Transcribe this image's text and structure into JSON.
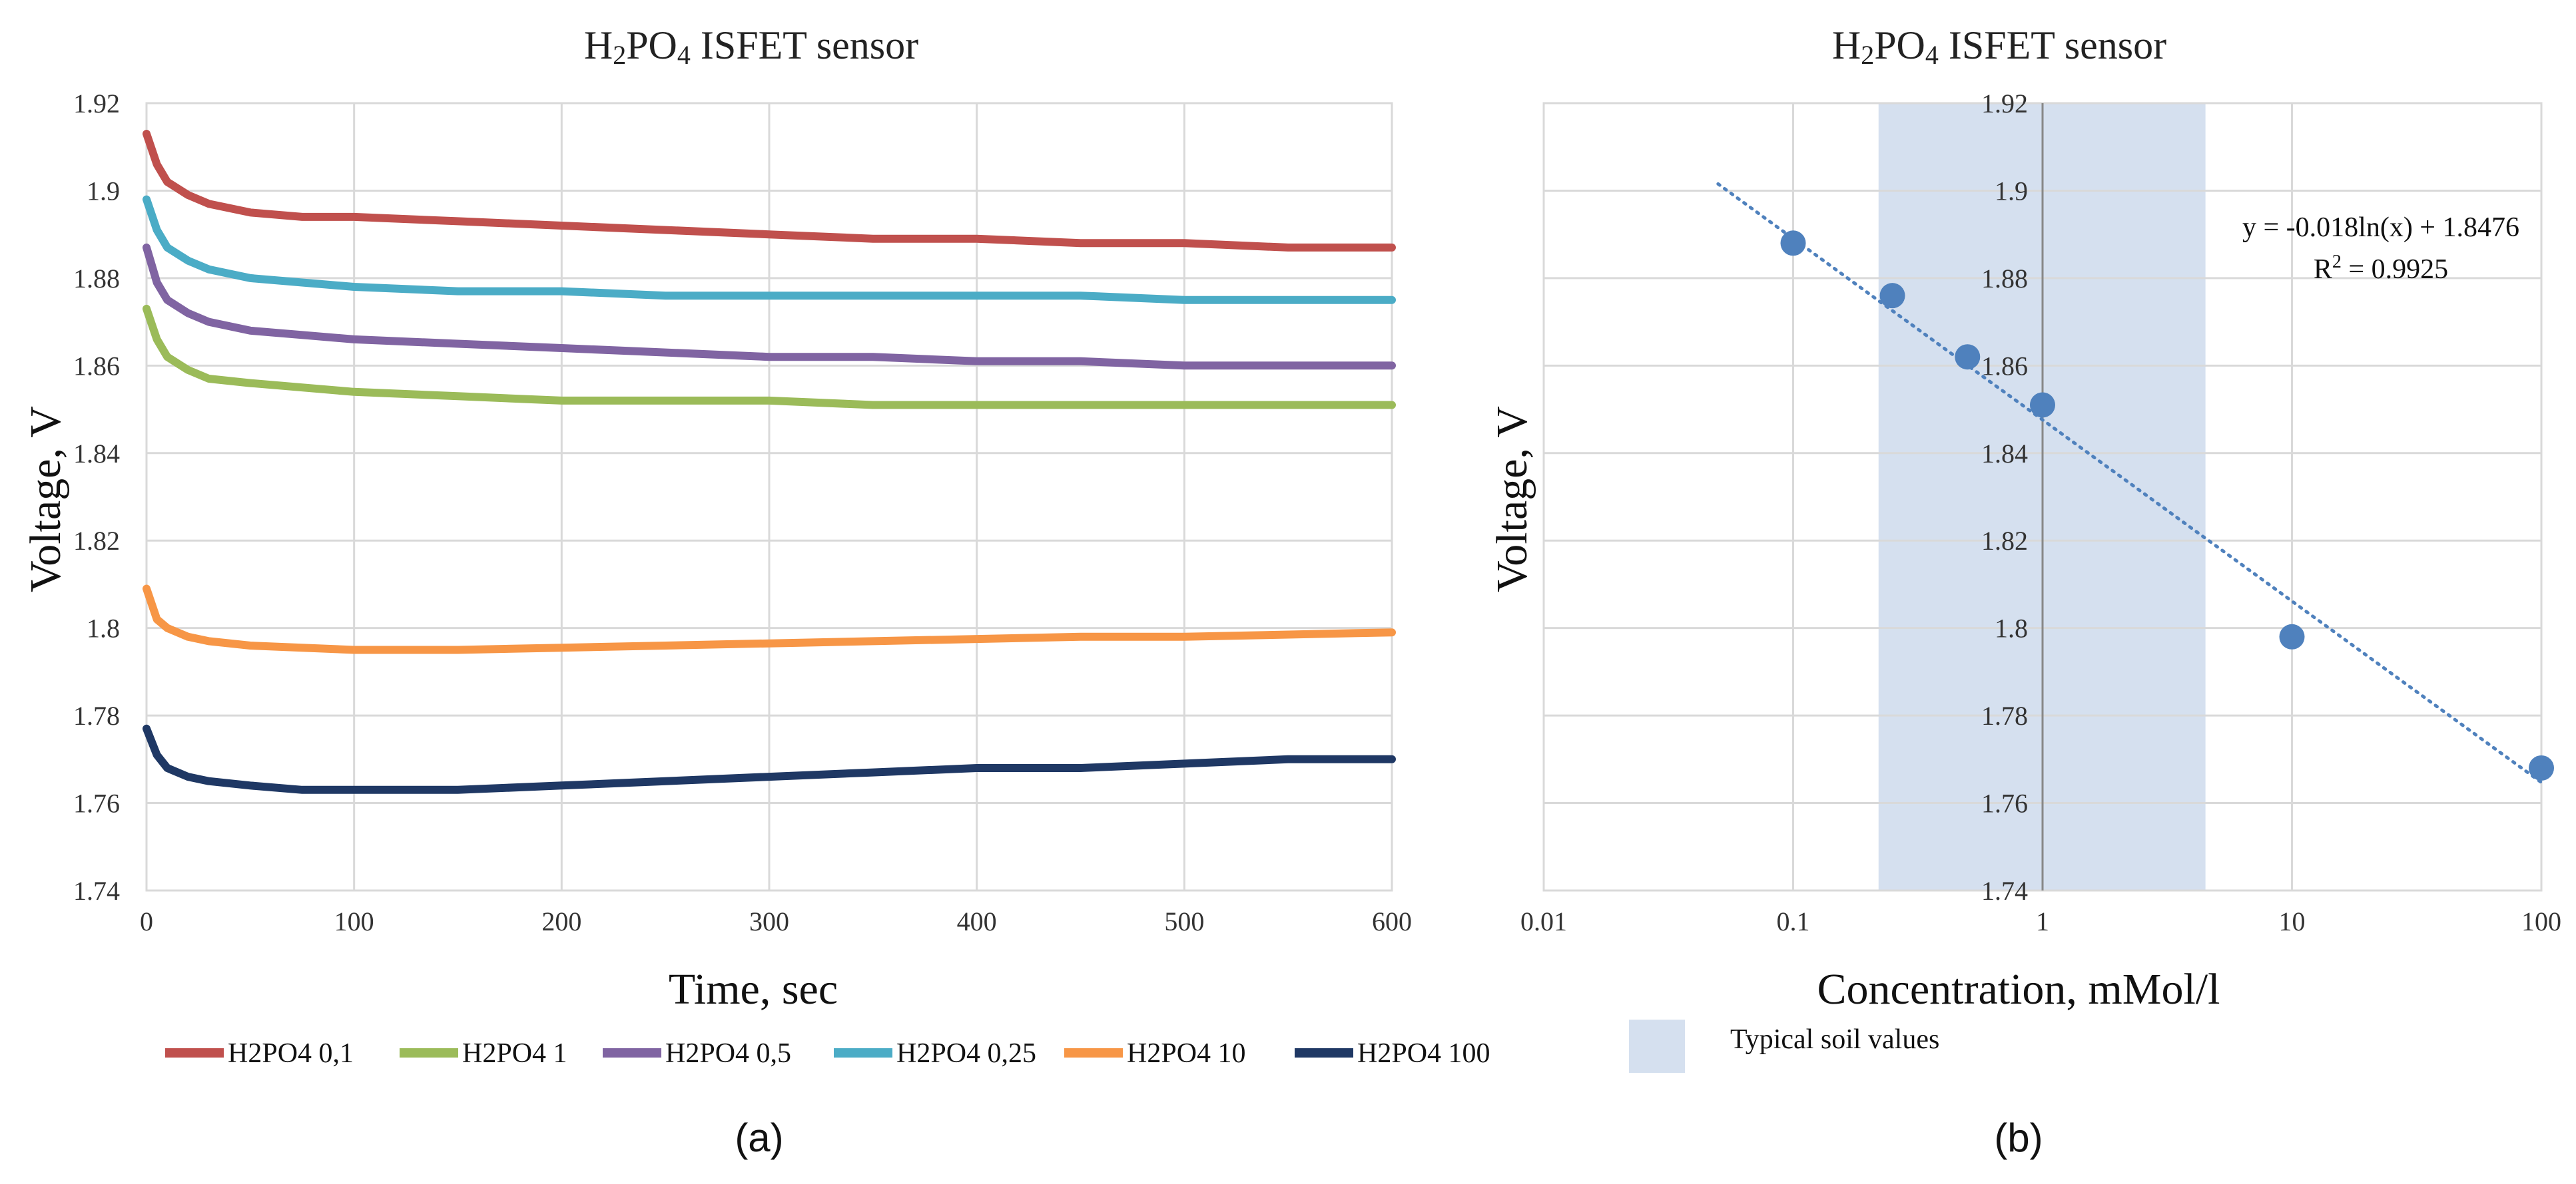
{
  "chart_data": [
    {
      "type": "line",
      "title_main": "H",
      "title_sub2": "2",
      "title_mid": "PO",
      "title_sub4": "4",
      "title_rest": " ISFET sensor",
      "xlabel": "Time, sec",
      "ylabel": "Voltage, V",
      "xlim": [
        0,
        600
      ],
      "ylim": [
        1.74,
        1.92
      ],
      "x_ticks": [
        "0",
        "100",
        "200",
        "300",
        "400",
        "500",
        "600"
      ],
      "y_ticks": [
        "1.74",
        "1.76",
        "1.78",
        "1.8",
        "1.82",
        "1.84",
        "1.86",
        "1.88",
        "1.9",
        "1.92"
      ],
      "grid": true,
      "series": [
        {
          "name": "H2PO4 0,1",
          "color": "#c0504d",
          "x": [
            0,
            5,
            10,
            20,
            30,
            50,
            75,
            100,
            150,
            200,
            250,
            300,
            350,
            400,
            450,
            500,
            550,
            600
          ],
          "values": [
            1.913,
            1.906,
            1.902,
            1.899,
            1.897,
            1.895,
            1.894,
            1.894,
            1.893,
            1.892,
            1.891,
            1.89,
            1.889,
            1.889,
            1.888,
            1.888,
            1.887,
            1.887
          ]
        },
        {
          "name": "H2PO4 1",
          "color": "#9bbb59",
          "x": [
            0,
            5,
            10,
            20,
            30,
            50,
            75,
            100,
            150,
            200,
            250,
            300,
            350,
            400,
            450,
            500,
            550,
            600
          ],
          "values": [
            1.873,
            1.866,
            1.862,
            1.859,
            1.857,
            1.856,
            1.855,
            1.854,
            1.853,
            1.852,
            1.852,
            1.852,
            1.851,
            1.851,
            1.851,
            1.851,
            1.851,
            1.851
          ]
        },
        {
          "name": "H2PO4 0,5",
          "color": "#8064a2",
          "x": [
            0,
            5,
            10,
            20,
            30,
            50,
            75,
            100,
            150,
            200,
            250,
            300,
            350,
            400,
            450,
            500,
            550,
            600
          ],
          "values": [
            1.887,
            1.879,
            1.875,
            1.872,
            1.87,
            1.868,
            1.867,
            1.866,
            1.865,
            1.864,
            1.863,
            1.862,
            1.862,
            1.861,
            1.861,
            1.86,
            1.86,
            1.86
          ]
        },
        {
          "name": "H2PO4 0,25",
          "color": "#4bacc6",
          "x": [
            0,
            5,
            10,
            20,
            30,
            50,
            75,
            100,
            150,
            200,
            250,
            300,
            350,
            400,
            450,
            500,
            550,
            600
          ],
          "values": [
            1.898,
            1.891,
            1.887,
            1.884,
            1.882,
            1.88,
            1.879,
            1.878,
            1.877,
            1.877,
            1.876,
            1.876,
            1.876,
            1.876,
            1.876,
            1.875,
            1.875,
            1.875
          ]
        },
        {
          "name": "H2PO4 10",
          "color": "#f79646",
          "x": [
            0,
            5,
            10,
            20,
            30,
            50,
            75,
            100,
            150,
            200,
            250,
            300,
            350,
            400,
            450,
            500,
            550,
            600
          ],
          "values": [
            1.809,
            1.802,
            1.8,
            1.798,
            1.797,
            1.796,
            1.7955,
            1.795,
            1.795,
            1.7955,
            1.796,
            1.7965,
            1.797,
            1.7975,
            1.798,
            1.798,
            1.7985,
            1.799
          ]
        },
        {
          "name": "H2PO4 100",
          "color": "#1f3864",
          "x": [
            0,
            5,
            10,
            20,
            30,
            50,
            75,
            100,
            150,
            200,
            250,
            300,
            350,
            400,
            450,
            500,
            550,
            600
          ],
          "values": [
            1.777,
            1.771,
            1.768,
            1.766,
            1.765,
            1.764,
            1.763,
            1.763,
            1.763,
            1.764,
            1.765,
            1.766,
            1.767,
            1.768,
            1.768,
            1.769,
            1.77,
            1.77
          ]
        }
      ],
      "panel_label": "(a)"
    },
    {
      "type": "scatter",
      "title_main": "H",
      "title_sub2": "2",
      "title_mid": "PO",
      "title_sub4": "4",
      "title_rest": " ISFET sensor",
      "xlabel": "Concentration, mMol/l",
      "ylabel": "Voltage, V",
      "x_scale": "log",
      "xlim": [
        0.01,
        100
      ],
      "ylim": [
        1.74,
        1.92
      ],
      "x_ticks": [
        "0.01",
        "0.1",
        "1",
        "10",
        "100"
      ],
      "y_ticks": [
        "1.74",
        "1.76",
        "1.78",
        "1.8",
        "1.82",
        "1.84",
        "1.86",
        "1.88",
        "1.9",
        "1.92"
      ],
      "points": {
        "x": [
          0.1,
          0.25,
          0.5,
          1,
          10,
          100
        ],
        "y": [
          1.888,
          1.876,
          1.862,
          1.851,
          1.798,
          1.768
        ]
      },
      "point_color": "#4f81bd",
      "trendline": {
        "a": -0.018,
        "b": 1.8476,
        "x_range": [
          0.05,
          100
        ],
        "color": "#4f81bd"
      },
      "equation": "y = -0.018ln(x) + 1.8476",
      "r2_prefix": "R",
      "r2_sup": "2",
      "r2_rest": " = 0.9925",
      "band": {
        "x_range": [
          0.22,
          4.5
        ],
        "color": "#d5e0ef",
        "label": "Typical soil values"
      },
      "panel_label": "(b)"
    }
  ]
}
